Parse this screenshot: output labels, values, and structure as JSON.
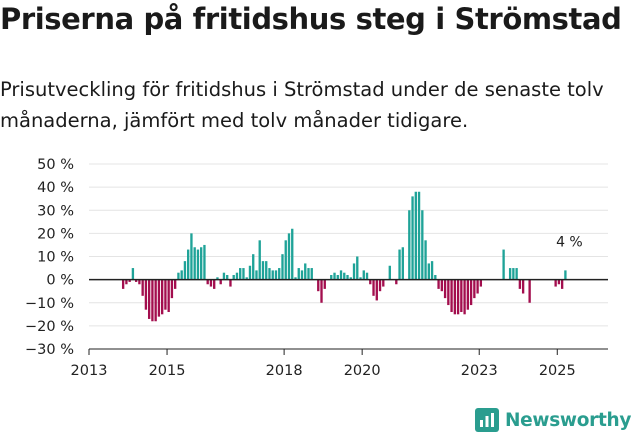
{
  "title": "Priserna på fritidshus steg i Strömstad",
  "subtitle": "Prisutveckling för fritidshus i Strömstad under de senaste tolv månaderna, jämfört med tolv månader tidigare.",
  "brand": "Newsworthy",
  "colors": {
    "positive": "#1fa398",
    "negative": "#a30e4e",
    "grid": "#e4e4e4",
    "axis": "#222222",
    "brand": "#2a9d8f"
  },
  "chart_data": {
    "type": "bar",
    "title": "Priserna på fritidshus steg i Strömstad",
    "ylabel": "",
    "xlabel": "",
    "ylim": [
      -30,
      50
    ],
    "xlim": [
      2013.0,
      2026.3
    ],
    "y_ticks": [
      50,
      40,
      30,
      20,
      10,
      0,
      -10,
      -20,
      -30
    ],
    "y_tick_labels": [
      "50 %",
      "40 %",
      "30 %",
      "20 %",
      "10 %",
      "0 %",
      "−10 %",
      "−20 %",
      "−30 %"
    ],
    "x_ticks": [
      2013,
      2015,
      2018,
      2020,
      2023,
      2025
    ],
    "x_tick_labels": [
      "2013",
      "2015",
      "2018",
      "2020",
      "2023",
      "2025"
    ],
    "annotation": {
      "text": "4 %",
      "x": 2025.67,
      "y": 4
    },
    "series": [
      {
        "name": "Prisutveckling",
        "start": 2013.875,
        "step": 0.0833333,
        "values": [
          -4,
          -2,
          -1,
          5,
          -1,
          -2,
          -7,
          -13,
          -17,
          -18,
          -18,
          -16,
          -15,
          -13,
          -14,
          -8,
          -4,
          3,
          4,
          8,
          13,
          20,
          14,
          13,
          14,
          15,
          -2,
          -3,
          -4,
          1,
          -2,
          3,
          2,
          -3,
          2,
          3,
          5,
          5,
          1,
          6,
          11,
          4,
          17,
          8,
          8,
          5,
          4,
          4,
          5,
          11,
          17,
          20,
          22,
          1,
          5,
          4,
          7,
          5,
          5,
          0,
          -5,
          -10,
          -4,
          0,
          2,
          3,
          2,
          4,
          3,
          2,
          1,
          7,
          10,
          1,
          4,
          3,
          -2,
          -7,
          -9,
          -5,
          -3,
          0,
          6,
          0,
          -2,
          13,
          14,
          0,
          30,
          36,
          38,
          38,
          30,
          17,
          7,
          8,
          2,
          -4,
          -5,
          -8,
          -11,
          -14,
          -15,
          -15,
          -14,
          -15,
          -13,
          -11,
          -8,
          -6,
          -3,
          0,
          0,
          0,
          0,
          0,
          0,
          13,
          0,
          5,
          5,
          5,
          -4,
          -6,
          0,
          -10,
          0,
          0,
          0,
          0,
          0,
          0,
          0,
          -3,
          -2,
          -4,
          4
        ]
      }
    ]
  }
}
